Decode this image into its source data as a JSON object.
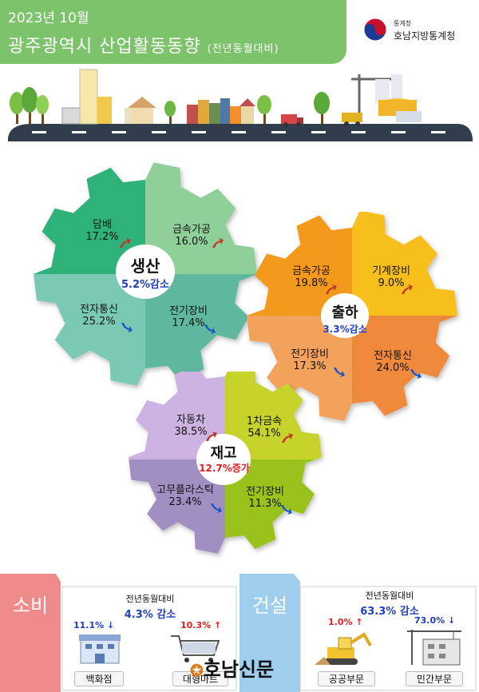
{
  "header": {
    "period": "2023년 10월",
    "title": "광주광역시 산업활동동향",
    "subtitle": "(전년동월대비)"
  },
  "logo": {
    "agency_small": "통계청",
    "agency": "호남지방통계청",
    "mark_icon": "taegeuk-icon"
  },
  "colors": {
    "header_green": "#7dc36b",
    "up_arrow": "#c0392b",
    "down_arrow": "#1f57c4",
    "increase_text": "#e02020",
    "decrease_text": "#1f3fbf"
  },
  "gears": {
    "production": {
      "title": "생산",
      "change": "5.2%감소",
      "items": [
        {
          "label": "담배",
          "value": "17.2%",
          "trend": "up"
        },
        {
          "label": "금속가공",
          "value": "16.0%",
          "trend": "up"
        },
        {
          "label": "전자통신",
          "value": "25.2%",
          "trend": "down"
        },
        {
          "label": "전기장비",
          "value": "17.4%",
          "trend": "down"
        }
      ]
    },
    "shipment": {
      "title": "출하",
      "change": "3.3%감소",
      "items": [
        {
          "label": "금속가공",
          "value": "19.8%",
          "trend": "up"
        },
        {
          "label": "기계장비",
          "value": "9.0%",
          "trend": "up"
        },
        {
          "label": "전기장비",
          "value": "17.3%",
          "trend": "down"
        },
        {
          "label": "전자통신",
          "value": "24.0%",
          "trend": "down"
        }
      ]
    },
    "inventory": {
      "title": "재고",
      "change": "12.7%증가",
      "items": [
        {
          "label": "자동차",
          "value": "38.5%",
          "trend": "up"
        },
        {
          "label": "1차금속",
          "value": "54.1%",
          "trend": "up"
        },
        {
          "label": "고무플라스틱",
          "value": "23.4%",
          "trend": "down"
        },
        {
          "label": "전기장비",
          "value": "11.3%",
          "trend": "down"
        }
      ]
    }
  },
  "consumption": {
    "tab": "소비",
    "note": "전년동월대비",
    "change": "4.3%  감소",
    "dept_store": {
      "label": "백화점",
      "value": "11.1%",
      "arrow": "↓"
    },
    "mart": {
      "label": "대형마트",
      "value": "10.3%",
      "arrow": "↑"
    }
  },
  "construction": {
    "tab": "건설",
    "note": "전년동월대비",
    "change": "63.3%  감소",
    "public": {
      "label": "공공부문",
      "value": "1.0%",
      "arrow": "↑"
    },
    "private": {
      "label": "민간부문",
      "value": "73.0%",
      "arrow": "↓"
    }
  },
  "watermark": "호남신문"
}
